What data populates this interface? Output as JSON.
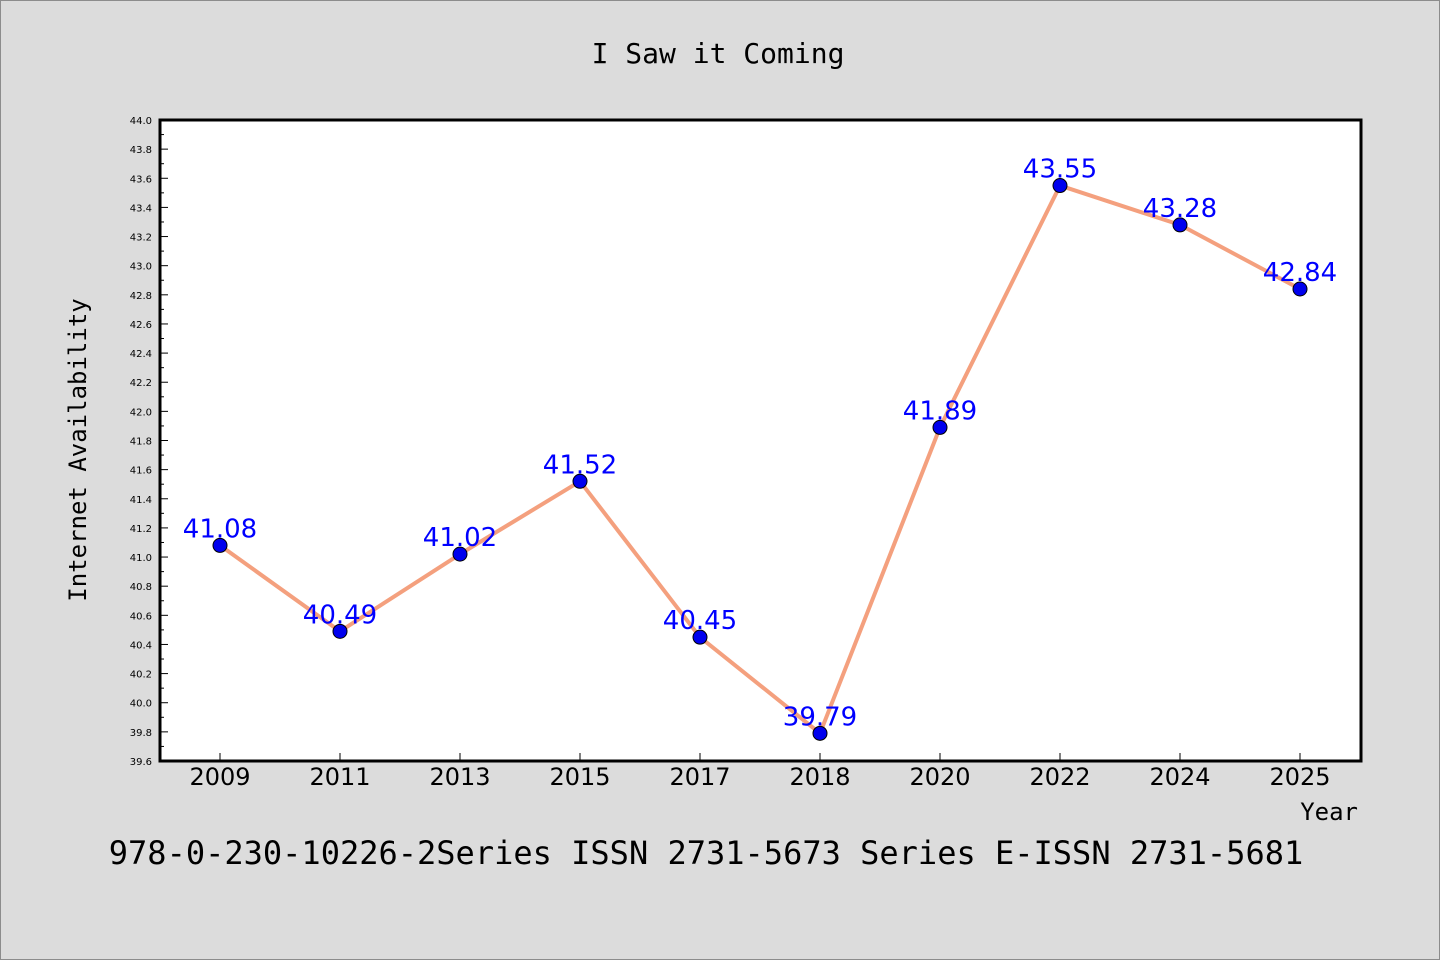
{
  "chart_data": {
    "type": "line",
    "title": "I Saw it Coming",
    "xlabel": "Year",
    "ylabel": "Internet Availability",
    "categories": [
      "2009",
      "2011",
      "2013",
      "2015",
      "2017",
      "2018",
      "2020",
      "2022",
      "2024",
      "2025"
    ],
    "series": [
      {
        "values": [
          41.08,
          40.49,
          41.02,
          41.52,
          40.45,
          39.79,
          41.89,
          43.55,
          43.28,
          42.84
        ],
        "labels": [
          "41.08",
          "40.49",
          "41.02",
          "41.52",
          "40.45",
          "39.79",
          "41.89",
          "43.55",
          "43.28",
          "42.84"
        ],
        "line_color": "#f4a07e",
        "marker_color": "#0000ee",
        "label_color": "#0000ff"
      }
    ],
    "ylim": [
      39.6,
      44.0
    ],
    "yticks": [
      "39.6",
      "39.8",
      "40.0",
      "40.2",
      "40.4",
      "40.6",
      "40.8",
      "41.0",
      "41.2",
      "41.4",
      "41.6",
      "41.8",
      "42.0",
      "42.2",
      "42.4",
      "42.6",
      "42.8",
      "43.0",
      "43.2",
      "43.4",
      "43.6",
      "43.8",
      "44.0"
    ],
    "grid": false,
    "legend": "none"
  },
  "footer": {
    "text": "978-0-230-10226-2Series ISSN 2731-5673 Series E-ISSN 2731-5681"
  },
  "colors": {
    "background": "#dcdcdc",
    "plot_background": "#ffffff",
    "axis": "#000000"
  }
}
